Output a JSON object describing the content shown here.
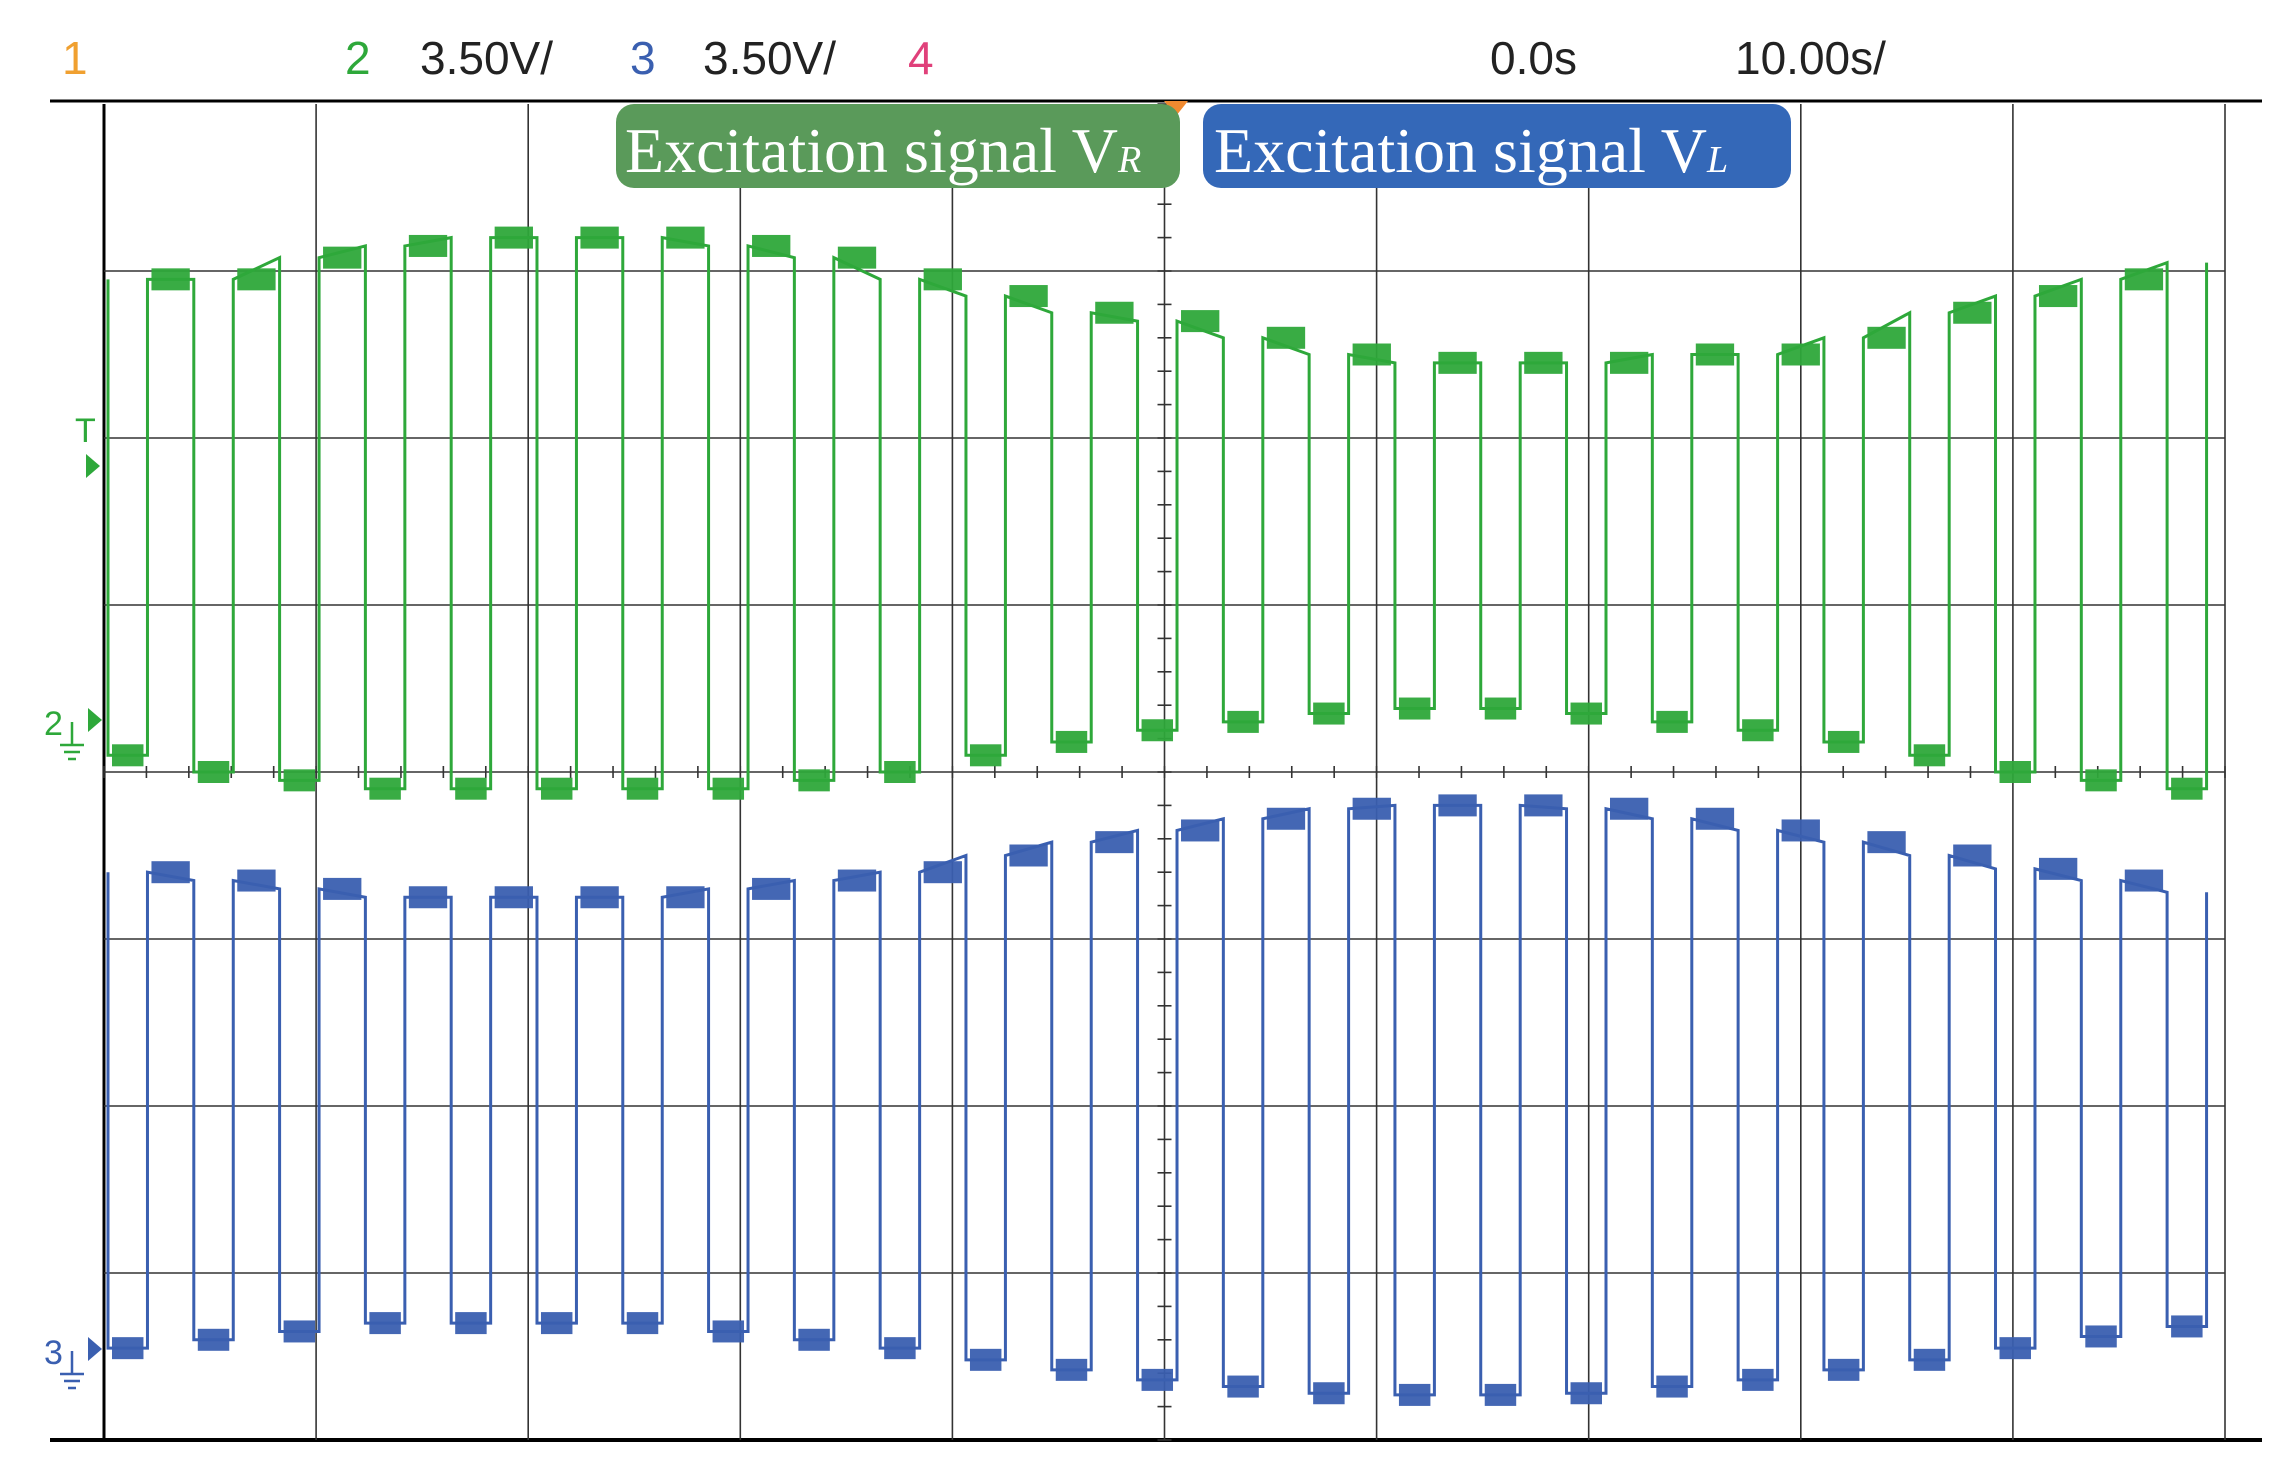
{
  "header": {
    "ch1_label": "1",
    "ch2_label": "2",
    "ch2_scale": "3.50V/",
    "ch3_label": "3",
    "ch3_scale": "3.50V/",
    "ch4_label": "4",
    "time_offset": "0.0s",
    "time_scale": "10.00s/",
    "colors": {
      "ch1": "#f0a030",
      "ch2": "#2ea83a",
      "ch3": "#3a5fb0",
      "ch4": "#e0407a"
    }
  },
  "markers": {
    "trigger": "T",
    "ch2_ground": "2",
    "ch3_ground": "3"
  },
  "chart_data": {
    "type": "line",
    "grid": true,
    "x_divisions": 10,
    "y_divisions": 8,
    "pulses_visible": 25,
    "series": [
      {
        "name": "Excitation signal VR",
        "label_main": "Excitation signal V",
        "label_sub": "R",
        "color": "#2ea83a",
        "tag_color": "#5a9a5a",
        "high_level_div": [
          6.95,
          6.95,
          7.08,
          7.15,
          7.2,
          7.2,
          7.2,
          7.15,
          7.08,
          6.95,
          6.85,
          6.75,
          6.7,
          6.6,
          6.5,
          6.45,
          6.45,
          6.45,
          6.5,
          6.5,
          6.6,
          6.75,
          6.85,
          6.95,
          7.05
        ],
        "low_level_div": [
          4.1,
          4.0,
          3.95,
          3.9,
          3.9,
          3.9,
          3.9,
          3.9,
          3.95,
          4.0,
          4.1,
          4.18,
          4.25,
          4.3,
          4.35,
          4.38,
          4.38,
          4.35,
          4.3,
          4.25,
          4.18,
          4.1,
          4.0,
          3.95,
          3.9
        ]
      },
      {
        "name": "Excitation signal VL",
        "label_main": "Excitation signal V",
        "label_sub": "L",
        "color": "#3a5fb0",
        "tag_color": "#3468b8",
        "high_level_div": [
          3.4,
          3.35,
          3.3,
          3.25,
          3.25,
          3.25,
          3.25,
          3.3,
          3.35,
          3.4,
          3.5,
          3.58,
          3.65,
          3.72,
          3.78,
          3.8,
          3.8,
          3.78,
          3.72,
          3.65,
          3.58,
          3.5,
          3.42,
          3.35,
          3.28
        ],
        "low_level_div": [
          0.55,
          0.6,
          0.65,
          0.7,
          0.7,
          0.7,
          0.7,
          0.65,
          0.6,
          0.55,
          0.48,
          0.42,
          0.36,
          0.32,
          0.28,
          0.27,
          0.27,
          0.28,
          0.32,
          0.36,
          0.42,
          0.48,
          0.55,
          0.62,
          0.68
        ]
      }
    ]
  }
}
